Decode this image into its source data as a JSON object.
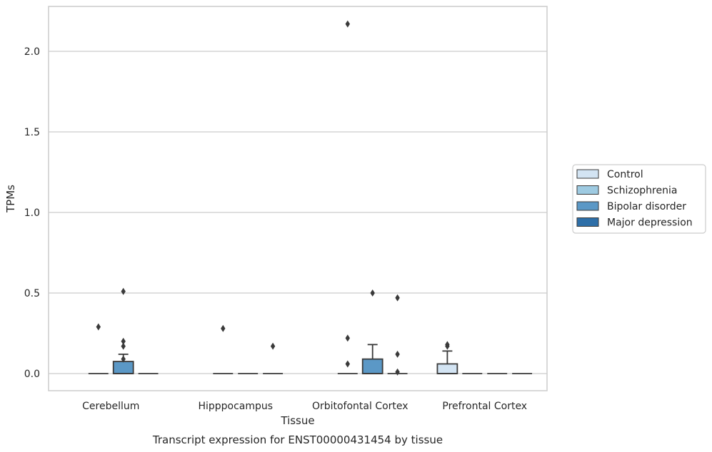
{
  "chart_data": {
    "type": "box",
    "title": "Transcript expression for ENST00000431454 by tissue",
    "xlabel": "Tissue",
    "ylabel": "TPMs",
    "ylim": [
      -0.1,
      2.28
    ],
    "yticks": [
      0.0,
      0.5,
      1.0,
      1.5,
      2.0
    ],
    "ytick_labels": [
      "0.0",
      "0.5",
      "1.0",
      "1.5",
      "2.0"
    ],
    "grid": "horizontal",
    "legend_position": "right",
    "categories": [
      "Cerebellum",
      "Hipppocampus",
      "Orbitofontal Cortex",
      "Prefrontal Cortex"
    ],
    "series": [
      {
        "name": "Control",
        "color": "#d3e4f3",
        "boxes": [
          null,
          null,
          null,
          {
            "q1": 0.0,
            "median": 0.0,
            "q3": 0.06,
            "whisker_low": 0.0,
            "whisker_high": 0.14,
            "outliers": [
              0.17,
              0.18
            ]
          }
        ]
      },
      {
        "name": "Schizophrenia",
        "color": "#9ecae1",
        "boxes": [
          {
            "q1": 0.0,
            "median": 0.0,
            "q3": 0.0,
            "whisker_low": 0.0,
            "whisker_high": 0.0,
            "outliers": [
              0.29
            ]
          },
          {
            "q1": 0.0,
            "median": 0.0,
            "q3": 0.0,
            "whisker_low": 0.0,
            "whisker_high": 0.0,
            "outliers": [
              0.28
            ]
          },
          {
            "q1": 0.0,
            "median": 0.0,
            "q3": 0.0,
            "whisker_low": 0.0,
            "whisker_high": 0.0,
            "outliers": [
              0.22,
              0.06,
              2.17
            ]
          },
          {
            "q1": 0.0,
            "median": 0.0,
            "q3": 0.0,
            "whisker_low": 0.0,
            "whisker_high": 0.0,
            "outliers": []
          }
        ]
      },
      {
        "name": "Bipolar disorder",
        "color": "#5b98c6",
        "boxes": [
          {
            "q1": 0.0,
            "median": 0.0,
            "q3": 0.075,
            "whisker_low": 0.0,
            "whisker_high": 0.12,
            "outliers": [
              0.17,
              0.09,
              0.51,
              0.2
            ]
          },
          {
            "q1": 0.0,
            "median": 0.0,
            "q3": 0.0,
            "whisker_low": 0.0,
            "whisker_high": 0.0,
            "outliers": []
          },
          {
            "q1": 0.0,
            "median": 0.0,
            "q3": 0.09,
            "whisker_low": 0.0,
            "whisker_high": 0.18,
            "outliers": [
              0.5
            ]
          },
          {
            "q1": 0.0,
            "median": 0.0,
            "q3": 0.0,
            "whisker_low": 0.0,
            "whisker_high": 0.0,
            "outliers": []
          }
        ]
      },
      {
        "name": "Major depression",
        "color": "#2e6fa8",
        "boxes": [
          {
            "q1": 0.0,
            "median": 0.0,
            "q3": 0.0,
            "whisker_low": 0.0,
            "whisker_high": 0.0,
            "outliers": []
          },
          {
            "q1": 0.0,
            "median": 0.0,
            "q3": 0.0,
            "whisker_low": 0.0,
            "whisker_high": 0.0,
            "outliers": [
              0.17
            ]
          },
          {
            "q1": 0.0,
            "median": 0.0,
            "q3": 0.0,
            "whisker_low": 0.0,
            "whisker_high": 0.0,
            "outliers": [
              0.47,
              0.12,
              0.01
            ]
          },
          {
            "q1": 0.0,
            "median": 0.0,
            "q3": 0.0,
            "whisker_low": 0.0,
            "whisker_high": 0.0,
            "outliers": []
          }
        ]
      }
    ]
  }
}
